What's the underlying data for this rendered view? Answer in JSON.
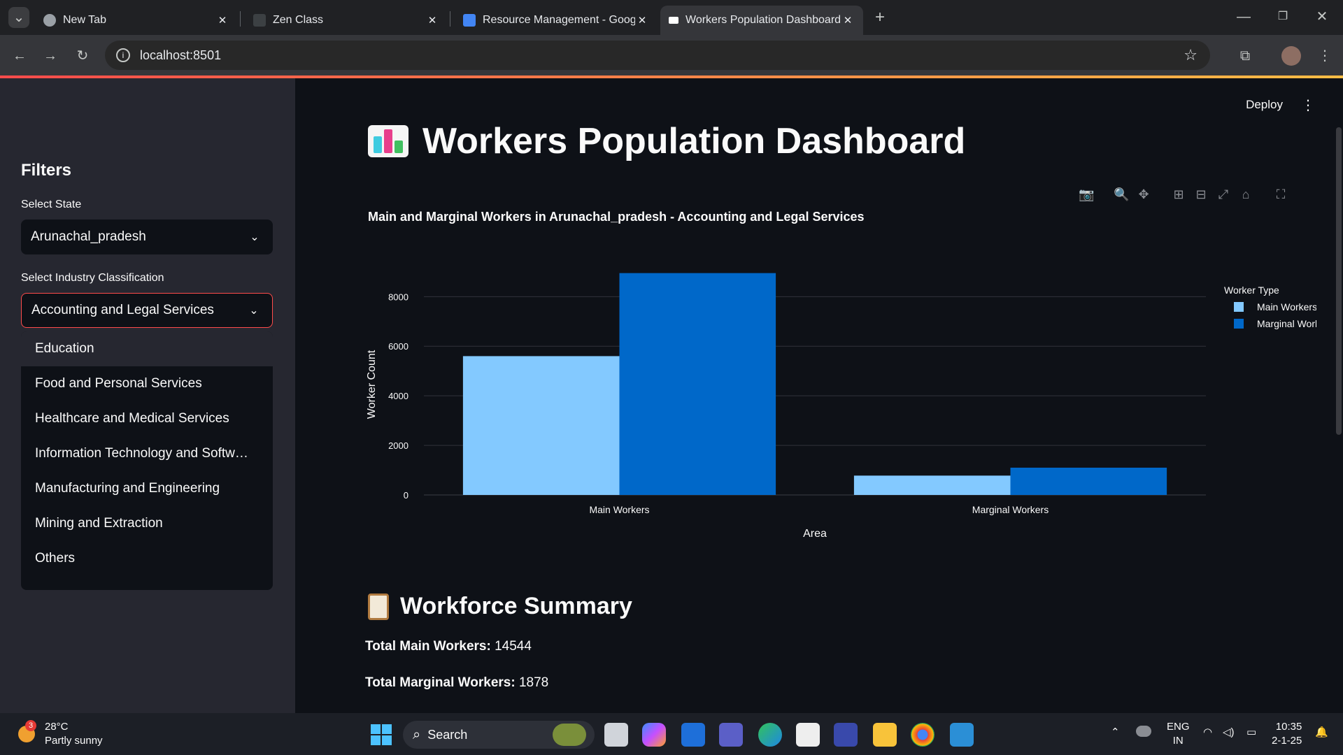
{
  "browser": {
    "tabs": [
      {
        "title": "New Tab",
        "active": false
      },
      {
        "title": "Zen Class",
        "active": false
      },
      {
        "title": "Resource Management - Googl",
        "active": false
      },
      {
        "title": "Workers Population Dashboard",
        "active": true
      }
    ],
    "url": "localhost:8501",
    "new_tab_symbol": "+"
  },
  "app": {
    "deploy_label": "Deploy",
    "title": "Workers Population Dashboard",
    "title_icon": "bar-chart-emoji"
  },
  "sidebar": {
    "heading": "Filters",
    "state_label": "Select State",
    "state_value": "Arunachal_pradesh",
    "industry_label": "Select Industry Classification",
    "industry_value": "Accounting and Legal Services",
    "dropdown_options": [
      "Education",
      "Food and Personal Services",
      "Healthcare and Medical Services",
      "Information Technology and Softw…",
      "Manufacturing and Engineering",
      "Mining and Extraction",
      "Others"
    ]
  },
  "chart_data": {
    "type": "bar",
    "title": "Main and Marginal Workers in Arunachal_pradesh - Accounting and Legal Services",
    "xlabel": "Area",
    "ylabel": "Worker Count",
    "categories": [
      "Main Workers",
      "Marginal Workers"
    ],
    "series": [
      {
        "name": "Main Workers",
        "values": [
          5600,
          780
        ],
        "color": "#83c9ff"
      },
      {
        "name": "Marginal Workers",
        "values": [
          8950,
          1100
        ],
        "color": "#0068c9"
      }
    ],
    "ylim": [
      0,
      9000
    ],
    "yticks": [
      0,
      2000,
      4000,
      6000,
      8000
    ],
    "legend_title": "Worker Type",
    "legend_position": "top-right",
    "grid": true
  },
  "summary": {
    "heading": "Workforce Summary",
    "main_label": "Total Main Workers:",
    "main_value": "14544",
    "marginal_label": "Total Marginal Workers:",
    "marginal_value": "1878"
  },
  "taskbar": {
    "weather_temp": "28°C",
    "weather_desc": "Partly sunny",
    "weather_badge": "3",
    "search_placeholder": "Search",
    "lang_top": "ENG",
    "lang_bottom": "IN",
    "time": "10:35",
    "date": "2-1-25"
  }
}
